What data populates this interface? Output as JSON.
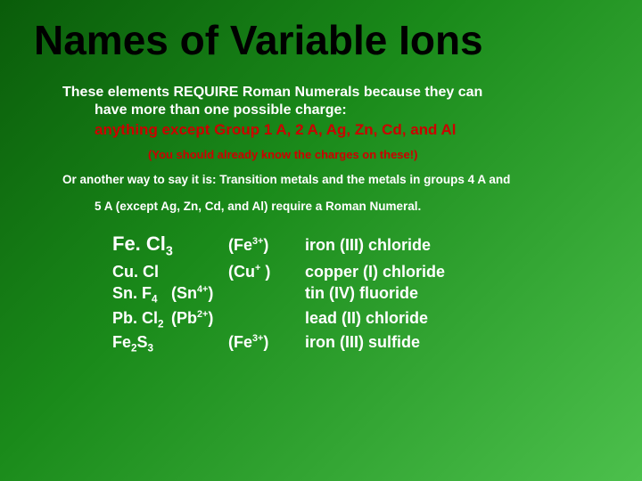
{
  "title": "Names of Variable Ions",
  "para1_line1": "These elements REQUIRE Roman Numerals because they can",
  "para1_line2": "have more than one possible charge:",
  "exception": "anything except Group 1 A, 2 A, Ag, Zn, Cd, and Al",
  "note": "(You should already know the charges on these!)",
  "para2_line1": "Or another way to say it is: Transition metals and the metals in groups 4 A and",
  "para2_line2": "5 A (except Ag, Zn, Cd, and Al) require a Roman Numeral.",
  "rows": [
    {
      "formula_html": "Fe. Cl<sub>3</sub>",
      "ion_html": "(Fe<sup>3+</sup>)",
      "name": "iron (III) chloride"
    },
    {
      "formula_html": "Cu. Cl",
      "ion_html": "(Cu<sup>+</sup> )",
      "name": "copper (I) chloride"
    },
    {
      "formula_html": "Sn. F<sub>4</sub>",
      "ion_html": "(Sn<sup>4+</sup>)",
      "name": "tin (IV) fluoride"
    },
    {
      "formula_html": "Pb. Cl<sub>2</sub>",
      "ion_html": "(Pb<sup>2+</sup>)",
      "name": "lead (II) chloride"
    },
    {
      "formula_html": "Fe<sub>2</sub>S<sub>3</sub>",
      "ion_html": "(Fe<sup>3+</sup>)",
      "name": "iron (III) sulfide"
    }
  ],
  "row0_big": true,
  "colors": {
    "bg_start": "#0a5c0a",
    "bg_mid": "#1a8a1a",
    "bg_end": "#4cc04c",
    "title": "#000000",
    "text": "#ffffff",
    "accent": "#cc0000"
  }
}
